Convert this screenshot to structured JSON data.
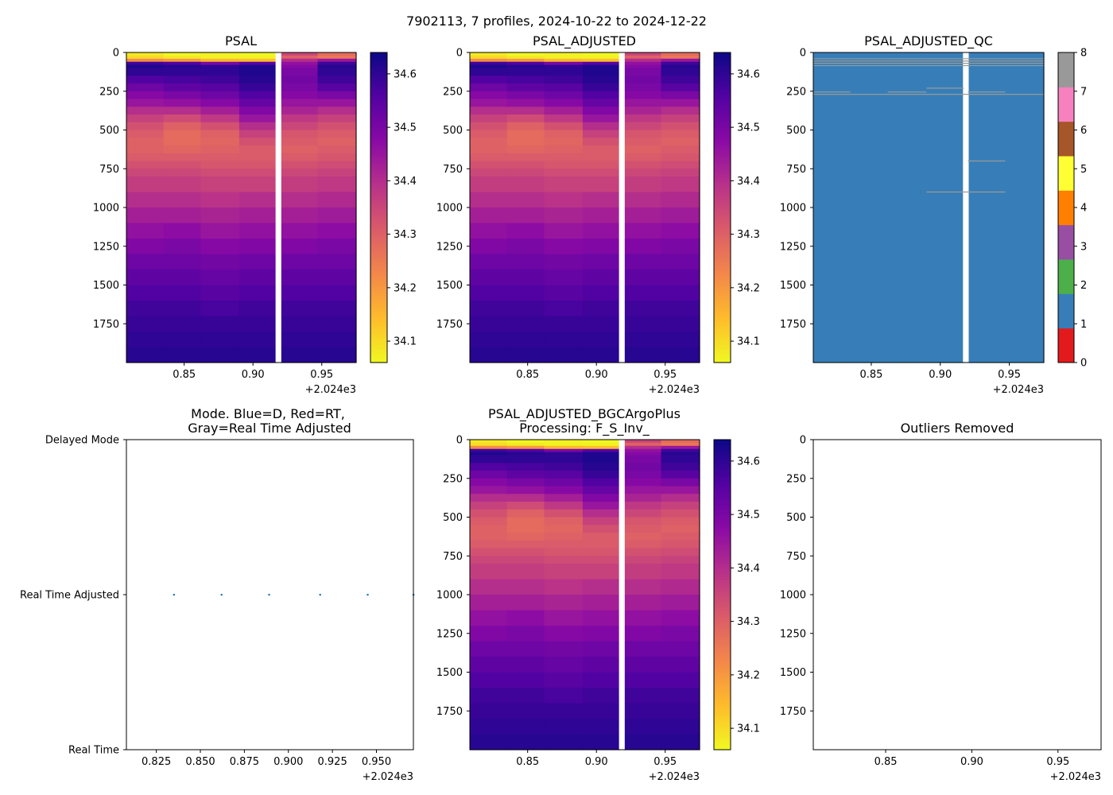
{
  "suptitle": "7902113, 7 profiles, 2024-10-22 to 2024-12-22",
  "chart_data": [
    {
      "id": "psal",
      "type": "heatmap",
      "title": "PSAL",
      "x_ticks": [
        "0.85",
        "0.90",
        "0.95"
      ],
      "x_tick_values": [
        0.85,
        0.9,
        0.95
      ],
      "x_offset_label": "+2.024e3",
      "xlim": [
        0.808,
        0.975
      ],
      "y_ticks": [
        "0",
        "250",
        "500",
        "750",
        "1000",
        "1250",
        "1500",
        "1750"
      ],
      "y_tick_values": [
        0,
        250,
        500,
        750,
        1000,
        1250,
        1500,
        1750
      ],
      "ylim": [
        2000,
        0
      ],
      "profile_edges": [
        0.808,
        0.835,
        0.862,
        0.89,
        0.917,
        0.92,
        0.947,
        0.975
      ],
      "gap_after_column": 3,
      "depth_levels": [
        0,
        20,
        40,
        60,
        80,
        100,
        150,
        200,
        250,
        300,
        350,
        400,
        450,
        500,
        550,
        600,
        650,
        700,
        750,
        800,
        900,
        1000,
        1100,
        1200,
        1300,
        1400,
        1500,
        1600,
        1700,
        1800,
        1900,
        2000
      ],
      "colorbar": {
        "ticks": [
          "34.1",
          "34.2",
          "34.3",
          "34.4",
          "34.5",
          "34.6"
        ],
        "tick_values": [
          34.1,
          34.2,
          34.3,
          34.4,
          34.5,
          34.6
        ],
        "vmin": 34.06,
        "vmax": 34.64,
        "cmap": "plasma_r"
      }
    },
    {
      "id": "psal_adj",
      "type": "heatmap",
      "title": "PSAL_ADJUSTED",
      "x_ticks": [
        "0.85",
        "0.90",
        "0.95"
      ],
      "x_tick_values": [
        0.85,
        0.9,
        0.95
      ],
      "x_offset_label": "+2.024e3",
      "xlim": [
        0.808,
        0.975
      ],
      "y_ticks": [
        "0",
        "250",
        "500",
        "750",
        "1000",
        "1250",
        "1500",
        "1750"
      ],
      "y_tick_values": [
        0,
        250,
        500,
        750,
        1000,
        1250,
        1500,
        1750
      ],
      "ylim": [
        2000,
        0
      ],
      "colorbar": {
        "ticks": [
          "34.1",
          "34.2",
          "34.3",
          "34.4",
          "34.5",
          "34.6"
        ],
        "tick_values": [
          34.1,
          34.2,
          34.3,
          34.4,
          34.5,
          34.6
        ],
        "vmin": 34.06,
        "vmax": 34.64,
        "cmap": "plasma_r"
      }
    },
    {
      "id": "psal_qc",
      "type": "heatmap",
      "title": "PSAL_ADJUSTED_QC",
      "x_ticks": [
        "0.85",
        "0.90",
        "0.95"
      ],
      "x_tick_values": [
        0.85,
        0.9,
        0.95
      ],
      "x_offset_label": "+2.024e3",
      "xlim": [
        0.808,
        0.975
      ],
      "y_ticks": [
        "0",
        "250",
        "500",
        "750",
        "1000",
        "1250",
        "1500",
        "1750"
      ],
      "y_tick_values": [
        0,
        250,
        500,
        750,
        1000,
        1250,
        1500,
        1750
      ],
      "ylim": [
        2000,
        0
      ],
      "qc_value": 1,
      "qc_gray_lines": [
        {
          "depth": 40,
          "x0": 0.808,
          "x1": 0.975
        },
        {
          "depth": 55,
          "x0": 0.808,
          "x1": 0.975
        },
        {
          "depth": 70,
          "x0": 0.808,
          "x1": 0.975
        },
        {
          "depth": 85,
          "x0": 0.808,
          "x1": 0.975
        },
        {
          "depth": 230,
          "x0": 0.89,
          "x1": 0.917
        },
        {
          "depth": 255,
          "x0": 0.808,
          "x1": 0.835
        },
        {
          "depth": 255,
          "x0": 0.862,
          "x1": 0.89
        },
        {
          "depth": 255,
          "x0": 0.92,
          "x1": 0.947
        },
        {
          "depth": 270,
          "x0": 0.808,
          "x1": 0.975
        },
        {
          "depth": 700,
          "x0": 0.92,
          "x1": 0.947
        },
        {
          "depth": 900,
          "x0": 0.89,
          "x1": 0.947
        }
      ],
      "colorbar": {
        "ticks": [
          "0",
          "1",
          "2",
          "3",
          "4",
          "5",
          "6",
          "7",
          "8"
        ],
        "tick_values": [
          0,
          1,
          2,
          3,
          4,
          5,
          6,
          7,
          8
        ],
        "colors": [
          "#e31a1c",
          "#377eb8",
          "#4daf4a",
          "#984ea3",
          "#ff7f00",
          "#ffff33",
          "#a65628",
          "#f781bf",
          "#999999"
        ]
      }
    },
    {
      "id": "mode",
      "type": "scatter",
      "title_lines": [
        "Mode. Blue=D, Red=RT,",
        "Gray=Real Time Adjusted"
      ],
      "x_ticks": [
        "0.825",
        "0.850",
        "0.875",
        "0.900",
        "0.925",
        "0.950"
      ],
      "x_tick_values": [
        0.825,
        0.85,
        0.875,
        0.9,
        0.925,
        0.95
      ],
      "x_offset_label": "+2.024e3",
      "xlim": [
        0.808,
        0.971
      ],
      "y_ticks": [
        "Delayed Mode",
        "Real Time Adjusted",
        "Real Time"
      ],
      "y_tick_values": [
        2,
        1,
        0
      ],
      "ylim": [
        0,
        2
      ],
      "points_x": [
        0.835,
        0.862,
        0.889,
        0.918,
        0.945,
        0.971
      ],
      "points_y": [
        1,
        1,
        1,
        1,
        1,
        1
      ],
      "point_color": "#1f77b4"
    },
    {
      "id": "psal_bgc",
      "type": "heatmap",
      "title_lines": [
        "PSAL_ADJUSTED_BGCArgoPlus",
        "Processing: F_S_Inv_"
      ],
      "x_ticks": [
        "0.85",
        "0.90",
        "0.95"
      ],
      "x_tick_values": [
        0.85,
        0.9,
        0.95
      ],
      "x_offset_label": "+2.024e3",
      "xlim": [
        0.808,
        0.975
      ],
      "y_ticks": [
        "0",
        "250",
        "500",
        "750",
        "1000",
        "1250",
        "1500",
        "1750"
      ],
      "y_tick_values": [
        0,
        250,
        500,
        750,
        1000,
        1250,
        1500,
        1750
      ],
      "ylim": [
        2000,
        0
      ],
      "colorbar": {
        "ticks": [
          "34.1",
          "34.2",
          "34.3",
          "34.4",
          "34.5",
          "34.6"
        ],
        "tick_values": [
          34.1,
          34.2,
          34.3,
          34.4,
          34.5,
          34.6
        ],
        "vmin": 34.06,
        "vmax": 34.64,
        "cmap": "plasma_r"
      }
    },
    {
      "id": "outliers",
      "type": "scatter",
      "title": "Outliers Removed",
      "x_ticks": [
        "0.85",
        "0.90",
        "0.95"
      ],
      "x_tick_values": [
        0.85,
        0.9,
        0.95
      ],
      "x_offset_label": "+2.024e3",
      "xlim": [
        0.808,
        0.975
      ],
      "y_ticks": [
        "0",
        "250",
        "500",
        "750",
        "1000",
        "1250",
        "1500",
        "1750"
      ],
      "y_tick_values": [
        0,
        250,
        500,
        750,
        1000,
        1250,
        1500,
        1750
      ],
      "ylim": [
        2000,
        0
      ]
    }
  ],
  "salinity_profiles": [
    [
      34.08,
      34.1,
      34.22,
      34.58,
      34.62,
      34.6,
      34.56,
      34.52,
      34.48,
      34.45,
      34.4,
      34.36,
      34.33,
      34.31,
      34.3,
      34.3,
      34.31,
      34.33,
      34.35,
      34.37,
      34.4,
      34.43,
      34.46,
      34.49,
      34.52,
      34.54,
      34.56,
      34.58,
      34.59,
      34.6,
      34.61
    ],
    [
      34.06,
      34.08,
      34.2,
      34.56,
      34.61,
      34.6,
      34.57,
      34.54,
      34.5,
      34.46,
      34.4,
      34.34,
      34.3,
      34.28,
      34.28,
      34.29,
      34.31,
      34.33,
      34.35,
      34.37,
      34.4,
      34.43,
      34.47,
      34.5,
      34.52,
      34.54,
      34.56,
      34.58,
      34.59,
      34.6,
      34.61
    ],
    [
      34.07,
      34.07,
      34.15,
      34.5,
      34.6,
      34.6,
      34.58,
      34.55,
      34.52,
      34.48,
      34.43,
      34.38,
      34.33,
      34.3,
      34.29,
      34.3,
      34.31,
      34.32,
      34.34,
      34.36,
      34.39,
      34.42,
      34.45,
      34.48,
      34.51,
      34.53,
      34.55,
      34.57,
      34.59,
      34.6,
      34.61
    ],
    [
      34.06,
      34.07,
      34.14,
      34.55,
      34.62,
      34.62,
      34.61,
      34.59,
      34.56,
      34.53,
      34.49,
      34.45,
      34.4,
      34.36,
      34.33,
      34.31,
      34.31,
      34.32,
      34.34,
      34.36,
      34.4,
      34.43,
      34.46,
      34.49,
      34.52,
      34.54,
      34.56,
      34.58,
      34.59,
      34.6,
      34.61
    ],
    [
      34.35,
      34.3,
      34.4,
      34.46,
      34.48,
      34.5,
      34.51,
      34.5,
      34.48,
      34.45,
      34.42,
      34.38,
      34.35,
      34.32,
      34.31,
      34.3,
      34.31,
      34.33,
      34.35,
      34.37,
      34.4,
      34.43,
      34.46,
      34.49,
      34.52,
      34.54,
      34.56,
      34.58,
      34.59,
      34.6,
      34.61
    ],
    [
      34.28,
      34.26,
      34.45,
      34.58,
      34.61,
      34.6,
      34.58,
      34.55,
      34.5,
      34.45,
      34.4,
      34.36,
      34.33,
      34.31,
      34.3,
      34.31,
      34.32,
      34.34,
      34.36,
      34.38,
      34.41,
      34.44,
      34.47,
      34.5,
      34.52,
      34.54,
      34.56,
      34.58,
      34.59,
      34.6,
      34.61
    ]
  ]
}
